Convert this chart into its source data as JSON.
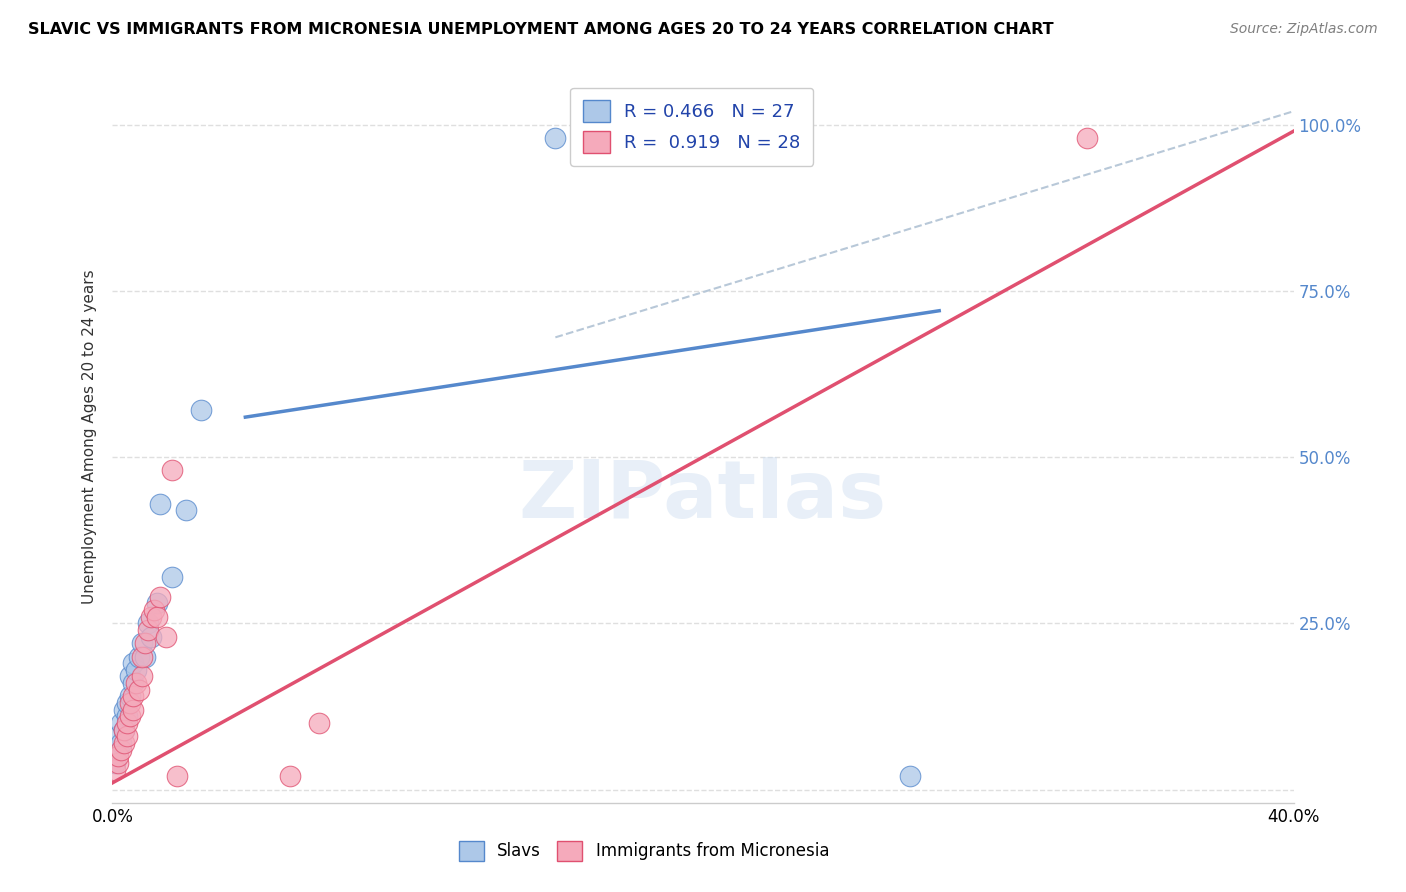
{
  "title": "SLAVIC VS IMMIGRANTS FROM MICRONESIA UNEMPLOYMENT AMONG AGES 20 TO 24 YEARS CORRELATION CHART",
  "source": "Source: ZipAtlas.com",
  "ylabel": "Unemployment Among Ages 20 to 24 years",
  "xlim": [
    0.0,
    0.4
  ],
  "ylim": [
    -0.02,
    1.08
  ],
  "x_ticks": [
    0.0,
    0.05,
    0.1,
    0.15,
    0.2,
    0.25,
    0.3,
    0.35,
    0.4
  ],
  "y_ticks": [
    0.0,
    0.25,
    0.5,
    0.75,
    1.0
  ],
  "y_tick_labels_right": [
    "",
    "25.0%",
    "50.0%",
    "75.0%",
    "100.0%"
  ],
  "slavs_R": "0.466",
  "slavs_N": "27",
  "micronesia_R": "0.919",
  "micronesia_N": "28",
  "legend_labels": [
    "Slavs",
    "Immigrants from Micronesia"
  ],
  "slavs_color": "#adc8e8",
  "micronesia_color": "#f5aabb",
  "slavs_edge_color": "#5588cc",
  "micronesia_edge_color": "#e05070",
  "slavs_line_color": "#5588cc",
  "micronesia_line_color": "#e05070",
  "dashed_line_color": "#b8c8d8",
  "watermark": "ZIPatlas",
  "slavs_scatter_x": [
    0.001,
    0.002,
    0.002,
    0.003,
    0.003,
    0.004,
    0.004,
    0.005,
    0.005,
    0.006,
    0.006,
    0.007,
    0.007,
    0.008,
    0.009,
    0.01,
    0.011,
    0.012,
    0.013,
    0.015,
    0.016,
    0.02,
    0.025,
    0.03,
    0.15,
    0.16,
    0.27
  ],
  "slavs_scatter_y": [
    0.04,
    0.06,
    0.08,
    0.07,
    0.1,
    0.09,
    0.12,
    0.11,
    0.13,
    0.14,
    0.17,
    0.16,
    0.19,
    0.18,
    0.2,
    0.22,
    0.2,
    0.25,
    0.23,
    0.28,
    0.43,
    0.32,
    0.42,
    0.57,
    0.98,
    0.99,
    0.02
  ],
  "micronesia_scatter_x": [
    0.001,
    0.002,
    0.002,
    0.003,
    0.004,
    0.004,
    0.005,
    0.005,
    0.006,
    0.006,
    0.007,
    0.007,
    0.008,
    0.009,
    0.01,
    0.01,
    0.011,
    0.012,
    0.013,
    0.014,
    0.015,
    0.016,
    0.018,
    0.02,
    0.022,
    0.06,
    0.07,
    0.33
  ],
  "micronesia_scatter_y": [
    0.03,
    0.04,
    0.05,
    0.06,
    0.07,
    0.09,
    0.08,
    0.1,
    0.11,
    0.13,
    0.12,
    0.14,
    0.16,
    0.15,
    0.17,
    0.2,
    0.22,
    0.24,
    0.26,
    0.27,
    0.26,
    0.29,
    0.23,
    0.48,
    0.02,
    0.02,
    0.1,
    0.98
  ],
  "slavs_line_x": [
    0.045,
    0.28
  ],
  "slavs_line_y": [
    0.56,
    0.72
  ],
  "micronesia_line_x": [
    0.0,
    0.4
  ],
  "micronesia_line_y": [
    0.01,
    0.99
  ],
  "dashed_line_x": [
    0.15,
    0.4
  ],
  "dashed_line_y": [
    0.68,
    1.02
  ],
  "background_color": "#ffffff",
  "grid_color": "#d8d8d8"
}
